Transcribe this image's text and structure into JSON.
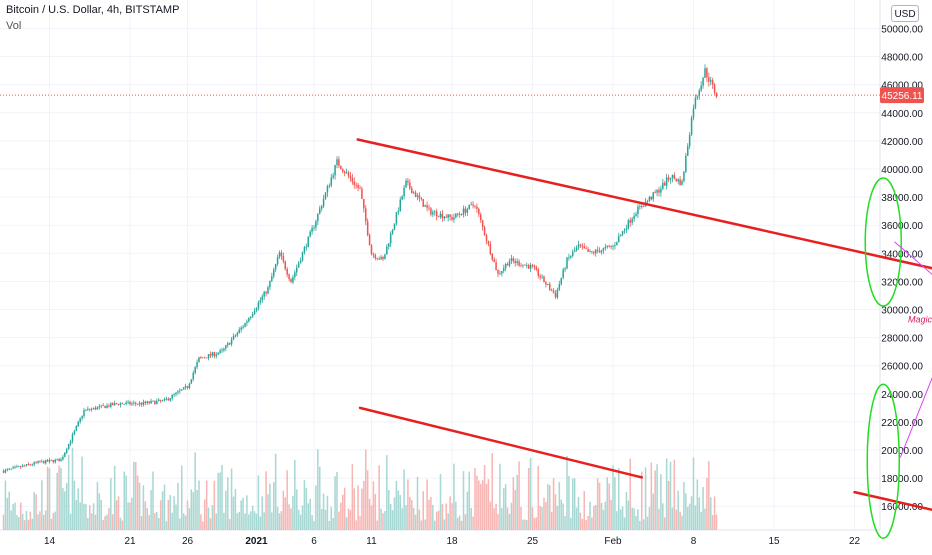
{
  "header": {
    "symbol_line": "Bitcoin / U.S. Dollar, 4h, BITSTAMP",
    "indicator": "Vol",
    "currency_button": "USD"
  },
  "price_label": "45256.11",
  "annotation": "Magic of volume and bull patterns",
  "colors": {
    "up": "#26a69a",
    "down": "#ef5350",
    "up_volume": "#a8d8d3",
    "down_volume": "#f6b6b4",
    "trendline": "#e81f1f",
    "ellipse": "#22dd22",
    "flag_lines": "#000000",
    "pointer_lines": "#e040fb",
    "annotation_text": "#d81b60",
    "price_line": "#ef5350"
  },
  "chart_data": {
    "type": "candlestick",
    "title": "Bitcoin / U.S. Dollar, 4h, BITSTAMP",
    "y_ticks": [
      "50000.00",
      "48000.00",
      "46000.00",
      "44000.00",
      "42000.00",
      "40000.00",
      "38000.00",
      "36000.00",
      "34000.00",
      "32000.00",
      "30000.00",
      "28000.00",
      "26000.00",
      "24000.00",
      "22000.00",
      "20000.00",
      "18000.00",
      "16000.00"
    ],
    "x_ticks": [
      "14",
      "21",
      "26",
      "2021",
      "6",
      "11",
      "18",
      "25",
      "Feb",
      "8",
      "15",
      "22"
    ],
    "ylim": [
      15000,
      51000
    ],
    "last_price": 45256.11,
    "close_anchors": [
      {
        "date": "Dec 10",
        "close": 18500
      },
      {
        "date": "Dec 13",
        "close": 19100
      },
      {
        "date": "Dec 15",
        "close": 19300
      },
      {
        "date": "Dec 16",
        "close": 21000
      },
      {
        "date": "Dec 17",
        "close": 22800
      },
      {
        "date": "Dec 20",
        "close": 23300
      },
      {
        "date": "Dec 22",
        "close": 23300
      },
      {
        "date": "Dec 24",
        "close": 23500
      },
      {
        "date": "Dec 26",
        "close": 24500
      },
      {
        "date": "Dec 27",
        "close": 26500
      },
      {
        "date": "Dec 29",
        "close": 27000
      },
      {
        "date": "Dec 31",
        "close": 29000
      },
      {
        "date": "Jan 2",
        "close": 31500
      },
      {
        "date": "Jan 3",
        "close": 34000
      },
      {
        "date": "Jan 4",
        "close": 32000
      },
      {
        "date": "Jan 6",
        "close": 36000
      },
      {
        "date": "Jan 8",
        "close": 40500
      },
      {
        "date": "Jan 10",
        "close": 38500
      },
      {
        "date": "Jan 11",
        "close": 34000
      },
      {
        "date": "Jan 12",
        "close": 33500
      },
      {
        "date": "Jan 14",
        "close": 39000
      },
      {
        "date": "Jan 16",
        "close": 37000
      },
      {
        "date": "Jan 18",
        "close": 36500
      },
      {
        "date": "Jan 20",
        "close": 37500
      },
      {
        "date": "Jan 22",
        "close": 32500
      },
      {
        "date": "Jan 23",
        "close": 33500
      },
      {
        "date": "Jan 25",
        "close": 33000
      },
      {
        "date": "Jan 27",
        "close": 31000
      },
      {
        "date": "Jan 28",
        "close": 33500
      },
      {
        "date": "Jan 29",
        "close": 34500
      },
      {
        "date": "Jan 30",
        "close": 34000
      },
      {
        "date": "Feb 1",
        "close": 34500
      },
      {
        "date": "Feb 3",
        "close": 37000
      },
      {
        "date": "Feb 5",
        "close": 38500
      },
      {
        "date": "Feb 6",
        "close": 39500
      },
      {
        "date": "Feb 7",
        "close": 39000
      },
      {
        "date": "Feb 8",
        "close": 44500
      },
      {
        "date": "Feb 9",
        "close": 47000
      },
      {
        "date": "Feb 10",
        "close": 45256
      }
    ]
  }
}
